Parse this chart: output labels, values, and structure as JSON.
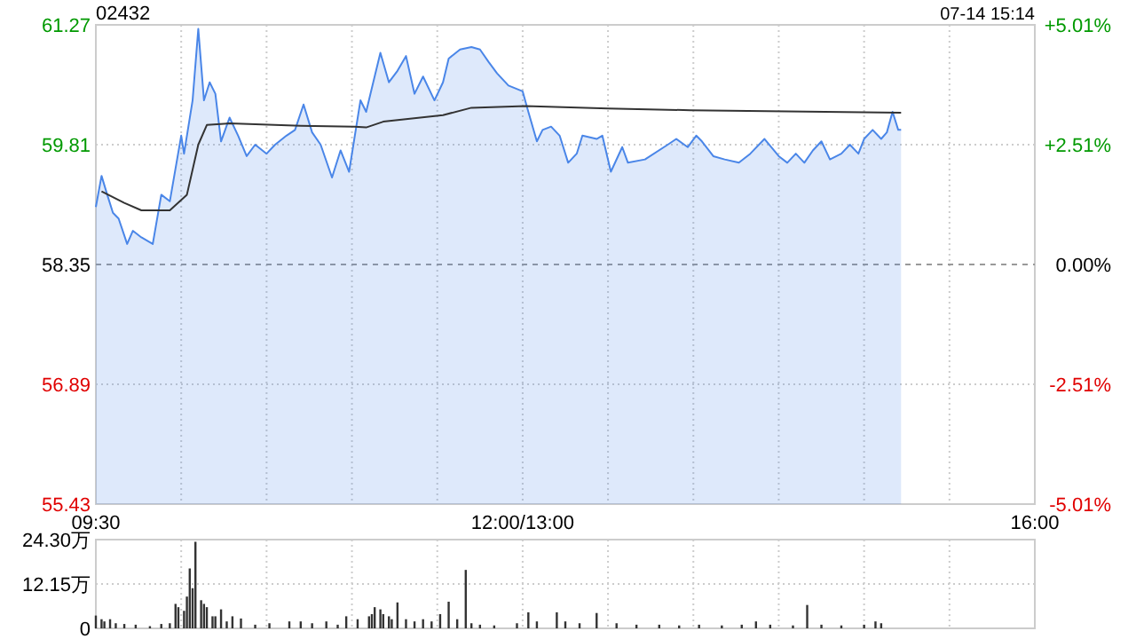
{
  "chart_data": [
    {
      "type": "area",
      "title": "02432",
      "subtitle": "07-14 15:14",
      "categories": [
        "09:30",
        null,
        null,
        null,
        null,
        null,
        null,
        null,
        null,
        null,
        null,
        null,
        null,
        null,
        null,
        null,
        null,
        null,
        null,
        null,
        null,
        null,
        null,
        null,
        null,
        null,
        null,
        null,
        null,
        null,
        null,
        null,
        null,
        null,
        null,
        null,
        null,
        null,
        null,
        null,
        null,
        null,
        null,
        null,
        null,
        null,
        null,
        null,
        null,
        null,
        null,
        null,
        null,
        null,
        null,
        null,
        null,
        null,
        null,
        null,
        null,
        null,
        null,
        null,
        null,
        null,
        null,
        null,
        null,
        null,
        null,
        null,
        null,
        null,
        null,
        null,
        null,
        null,
        null,
        null,
        null,
        null,
        null,
        null,
        null,
        null,
        null,
        null,
        null,
        null,
        null,
        null,
        null,
        null,
        null,
        null,
        null,
        null,
        null,
        null,
        null,
        null,
        null,
        null,
        null,
        null,
        null,
        null,
        null,
        null,
        null,
        null,
        null,
        null,
        null,
        null,
        null,
        null,
        null,
        null,
        null,
        null,
        null,
        null,
        null,
        null,
        null,
        null,
        null,
        null,
        null,
        null,
        null,
        null,
        null,
        null,
        null,
        null,
        null,
        null,
        null,
        null,
        null,
        null,
        null,
        null,
        null,
        null,
        null,
        null,
        "12:00/13:00",
        null,
        null,
        null,
        null,
        null,
        null,
        null,
        null,
        null,
        null,
        null,
        null,
        null,
        null,
        null,
        null,
        null,
        null,
        null,
        null,
        null,
        null,
        null,
        null,
        null,
        null,
        null,
        null,
        null,
        null,
        null,
        null,
        null,
        null,
        null,
        null,
        null,
        null,
        null,
        null,
        null,
        null,
        null,
        null,
        null,
        null,
        null,
        null,
        null,
        null,
        null,
        null,
        null,
        null,
        null,
        null,
        null,
        null,
        null,
        null,
        null,
        null,
        null,
        null,
        null,
        null,
        null,
        null,
        null,
        null,
        null,
        null,
        null,
        null,
        null,
        null,
        null,
        null,
        null,
        null,
        null,
        null,
        null,
        null,
        null,
        null,
        null,
        null,
        null,
        null,
        null,
        null,
        null,
        null,
        null,
        null,
        null,
        null,
        null,
        null,
        null,
        null,
        null,
        null,
        null,
        null,
        null,
        null,
        null,
        null,
        null,
        null,
        null,
        null,
        null,
        null,
        null,
        null,
        null,
        null,
        null,
        null,
        null,
        null,
        null,
        null,
        null,
        null,
        null,
        null,
        null,
        null,
        null,
        null,
        null,
        null,
        null,
        null,
        null,
        null,
        null,
        null,
        null,
        null,
        null,
        null,
        null,
        null,
        null,
        null,
        null,
        null,
        null,
        null,
        null,
        null,
        null,
        null,
        null,
        null,
        null,
        null,
        null,
        null,
        null,
        null,
        null,
        null,
        null,
        null,
        null,
        null,
        null,
        null,
        null,
        null,
        null,
        null,
        null,
        "16:00"
      ],
      "ylim": [
        55.43,
        61.27
      ],
      "yticks": [
        55.43,
        56.89,
        58.35,
        59.81,
        61.27
      ],
      "y2lim": [
        -5.01,
        5.01
      ],
      "y2ticks": [
        {
          "value": -5.01,
          "label": "-5.01%"
        },
        {
          "value": -2.51,
          "label": "-2.51%"
        },
        {
          "value": 0,
          "label": "0.00%"
        },
        {
          "value": 2.51,
          "label": "+2.51%"
        },
        {
          "value": 5.01,
          "label": "+5.01%"
        }
      ],
      "grid": true,
      "ref_lines": [
        {
          "axis": "y",
          "value": 58.35,
          "color": "#999999",
          "line_style": "dashed"
        }
      ],
      "series": [
        {
          "type": "area",
          "color": "#4a86e8",
          "values": [
            59.05,
            null,
            59.43,
            null,
            59.2,
            null,
            58.98,
            null,
            58.91,
            null,
            null,
            58.6,
            null,
            58.76,
            null,
            null,
            58.68,
            null,
            null,
            null,
            58.6,
            null,
            null,
            59.2,
            null,
            null,
            59.12,
            null,
            null,
            null,
            59.92,
            59.7,
            null,
            null,
            60.35,
            null,
            61.22,
            null,
            60.35,
            null,
            60.57,
            null,
            60.43,
            null,
            59.85,
            null,
            null,
            60.14,
            null,
            null,
            59.92,
            null,
            null,
            59.67,
            null,
            null,
            59.81,
            null,
            null,
            null,
            59.7,
            null,
            null,
            59.81,
            null,
            null,
            null,
            59.92,
            null,
            null,
            59.99,
            null,
            null,
            60.3,
            null,
            null,
            59.96,
            null,
            null,
            59.81,
            null,
            null,
            null,
            59.41,
            null,
            null,
            59.74,
            null,
            null,
            59.48,
            null,
            null,
            null,
            60.35,
            null,
            60.21,
            null,
            60.5,
            null,
            null,
            60.93,
            null,
            null,
            60.57,
            null,
            null,
            60.71,
            null,
            null,
            60.89,
            null,
            null,
            60.43,
            null,
            null,
            60.64,
            null,
            null,
            null,
            60.35,
            null,
            null,
            60.57,
            null,
            60.86,
            null,
            null,
            null,
            60.97,
            null,
            null,
            null,
            61.0,
            null,
            null,
            60.97,
            null,
            null,
            60.82,
            null,
            null,
            60.68,
            null,
            null,
            null,
            60.53,
            null,
            null,
            null,
            null,
            60.46,
            null,
            60.21,
            null,
            null,
            59.85,
            null,
            59.99,
            null,
            null,
            60.03,
            null,
            null,
            59.92,
            null,
            null,
            59.59,
            null,
            null,
            59.7,
            null,
            59.92,
            null,
            null,
            null,
            null,
            59.88,
            null,
            59.92,
            null,
            null,
            59.48,
            null,
            null,
            null,
            59.78,
            null,
            59.59,
            null,
            null,
            null,
            null,
            null,
            59.63,
            null,
            null,
            null,
            null,
            null,
            null,
            null,
            59.81,
            null,
            null,
            59.88,
            null,
            null,
            null,
            59.78,
            null,
            null,
            59.92,
            null,
            59.85,
            null,
            null,
            null,
            59.67,
            null,
            null,
            null,
            59.63,
            null,
            null,
            null,
            null,
            59.59,
            null,
            null,
            null,
            59.7,
            null,
            null,
            null,
            null,
            59.88,
            null,
            null,
            null,
            null,
            59.67,
            null,
            null,
            59.59,
            null,
            null,
            59.7,
            null,
            null,
            59.59,
            null,
            null,
            59.74,
            null,
            null,
            59.85,
            null,
            null,
            59.63,
            null,
            null,
            null,
            59.7,
            null,
            null,
            59.81,
            null,
            null,
            59.7,
            null,
            59.88,
            null,
            null,
            59.99,
            null,
            null,
            59.88,
            null,
            59.96,
            null,
            60.21,
            null,
            59.99,
            59.99,
            null,
            null,
            null,
            null,
            null,
            null,
            null,
            null,
            null,
            null,
            null,
            null,
            null,
            null,
            null,
            null,
            null,
            null,
            null,
            null,
            null,
            null,
            null,
            null,
            null,
            null,
            null,
            null,
            null,
            null,
            null,
            null,
            null,
            null,
            null,
            null,
            null,
            null,
            null,
            null,
            null,
            null,
            null,
            null,
            null,
            null,
            null
          ]
        },
        {
          "type": "line",
          "color": "#333333",
          "values": [
            null,
            null,
            59.24,
            null,
            null,
            null,
            null,
            null,
            null,
            null,
            59.1,
            null,
            null,
            null,
            null,
            null,
            59.01,
            null,
            null,
            null,
            null,
            null,
            null,
            null,
            null,
            null,
            59.01,
            null,
            null,
            null,
            null,
            null,
            59.2,
            null,
            null,
            null,
            59.81,
            null,
            null,
            60.05,
            null,
            null,
            null,
            null,
            null,
            null,
            null,
            60.07,
            null,
            null,
            null,
            null,
            null,
            null,
            null,
            null,
            null,
            null,
            null,
            null,
            null,
            null,
            null,
            null,
            null,
            null,
            null,
            null,
            null,
            null,
            null,
            null,
            60.04,
            null,
            null,
            null,
            null,
            null,
            null,
            null,
            null,
            null,
            null,
            null,
            null,
            null,
            null,
            null,
            null,
            null,
            null,
            60.03,
            null,
            null,
            null,
            60.02,
            null,
            null,
            null,
            null,
            null,
            60.09,
            null,
            null,
            null,
            null,
            null,
            null,
            null,
            null,
            null,
            null,
            null,
            null,
            null,
            null,
            null,
            null,
            null,
            null,
            null,
            null,
            60.17,
            null,
            null,
            null,
            null,
            null,
            null,
            null,
            null,
            null,
            60.26,
            null,
            null,
            null,
            null,
            null,
            null,
            null,
            null,
            null,
            null,
            null,
            null,
            null,
            null,
            null,
            null,
            null,
            null,
            60.28,
            null,
            null,
            null,
            null,
            null,
            null,
            null,
            null,
            null,
            null,
            null,
            null,
            null,
            null,
            null,
            null,
            null,
            null,
            null,
            null,
            null,
            null,
            null,
            null,
            null,
            null,
            null,
            null,
            60.25,
            null,
            null,
            null,
            null,
            null,
            null,
            null,
            null,
            null,
            null,
            null,
            null,
            null,
            null,
            null,
            null,
            null,
            null,
            null,
            null,
            null,
            null,
            null,
            null,
            null,
            null,
            null,
            null,
            60.23,
            null,
            null,
            null,
            null,
            null,
            null,
            null,
            null,
            null,
            null,
            null,
            null,
            null,
            null,
            null,
            null,
            null,
            null,
            null,
            null,
            null,
            null,
            null,
            null,
            null,
            null,
            null,
            null,
            null,
            null,
            null,
            null,
            null,
            null,
            null,
            null,
            null,
            null,
            null,
            null,
            null,
            null,
            null,
            null,
            null,
            null,
            null,
            null,
            null,
            null,
            null,
            null,
            null,
            null,
            null,
            null,
            null,
            null,
            null,
            null,
            null,
            null,
            null,
            null,
            null,
            null,
            null,
            null,
            null,
            null,
            null,
            null,
            null,
            60.2,
            null,
            null,
            null,
            null,
            null,
            null,
            null,
            null,
            null,
            null,
            null,
            null,
            null,
            null,
            null,
            null,
            null,
            null,
            null,
            null,
            null,
            null,
            null,
            null,
            null,
            null,
            null,
            null,
            null,
            null,
            null,
            null,
            null,
            null,
            null,
            null,
            null,
            null,
            null,
            null,
            null,
            null,
            null,
            null,
            null,
            null,
            null
          ]
        }
      ]
    },
    {
      "type": "bar",
      "grid": true,
      "categories": [
        null,
        null,
        null,
        null,
        null,
        null,
        null,
        null,
        null,
        null,
        null,
        null,
        null,
        null,
        null,
        null,
        null,
        null,
        null,
        null,
        null,
        null,
        null,
        null,
        null,
        null,
        null,
        null,
        null,
        null,
        null,
        null,
        null,
        null,
        null,
        null,
        null,
        null,
        null,
        null,
        null,
        null,
        null,
        null,
        null,
        null,
        null,
        null,
        null,
        null,
        null,
        null,
        null,
        null,
        null,
        null,
        null,
        null,
        null,
        null,
        null,
        null,
        null,
        null,
        null,
        null,
        null,
        null,
        null,
        null,
        null,
        null,
        null,
        null,
        null,
        null,
        null,
        null,
        null,
        null,
        null,
        null,
        null,
        null,
        null,
        null,
        null,
        null,
        null,
        null,
        null,
        null,
        null,
        null,
        null,
        null,
        null,
        null,
        null,
        null,
        null,
        null,
        null,
        null,
        null,
        null,
        null,
        null,
        null,
        null,
        null,
        null,
        null,
        null,
        null,
        null,
        null,
        null,
        null,
        null,
        null,
        null,
        null,
        null,
        null,
        null,
        null,
        null,
        null,
        null,
        null,
        null,
        null,
        null,
        null,
        null,
        null,
        null,
        null,
        null,
        null,
        null,
        null,
        null,
        null,
        null,
        null,
        null,
        null,
        null,
        null,
        null,
        null,
        null,
        null,
        null,
        null,
        null,
        null,
        null,
        null,
        null,
        null,
        null,
        null,
        null,
        null,
        null,
        null,
        null,
        null,
        null,
        null,
        null,
        null,
        null,
        null,
        null,
        null,
        null,
        null,
        null,
        null,
        null,
        null,
        null,
        null,
        null,
        null,
        null,
        null,
        null,
        null,
        null,
        null,
        null,
        null,
        null,
        null,
        null,
        null,
        null,
        null,
        null,
        null,
        null,
        null,
        null,
        null,
        null,
        null,
        null,
        null,
        null,
        null,
        null,
        null,
        null,
        null,
        null,
        null,
        null,
        null,
        null,
        null,
        null,
        null,
        null,
        null,
        null,
        null,
        null,
        null,
        null,
        null,
        null,
        null,
        null,
        null,
        null,
        null,
        null,
        null,
        null,
        null,
        null,
        null,
        null,
        null,
        null,
        null,
        null,
        null,
        null,
        null,
        null,
        null,
        null,
        null,
        null,
        null,
        null,
        null,
        null,
        null,
        null,
        null,
        null,
        null,
        null,
        null,
        null,
        null,
        null,
        null,
        null,
        null,
        null,
        null,
        null,
        null,
        null,
        null,
        null,
        null,
        null,
        null,
        null,
        null,
        null,
        null,
        null,
        null,
        null,
        null,
        null,
        null,
        null,
        null,
        null,
        null,
        null,
        null,
        null,
        null,
        null,
        null,
        null,
        null,
        null,
        null,
        null,
        null,
        null,
        null,
        null,
        null,
        null,
        null,
        null,
        null,
        null,
        null,
        null,
        null,
        null,
        null,
        null,
        null,
        null,
        null
      ],
      "ylim": [
        0,
        24.3
      ],
      "yticks": [
        0,
        {
          "value": 12.15,
          "label": "12.15万"
        },
        {
          "value": 24.3,
          "label": "24.30万"
        }
      ],
      "series": [
        {
          "color": "#333333",
          "values": [
            3.5,
            null,
            2.5,
            1.9,
            null,
            2.5,
            null,
            1.4,
            null,
            null,
            1.2,
            null,
            null,
            null,
            1.0,
            null,
            null,
            null,
            null,
            0.6,
            null,
            null,
            null,
            1.2,
            null,
            null,
            1.4,
            null,
            6.7,
            5.8,
            null,
            4.8,
            8.7,
            16.4,
            11.0,
            23.7,
            null,
            7.7,
            6.7,
            5.8,
            null,
            3.3,
            3.3,
            null,
            5.2,
            null,
            1.9,
            null,
            3.3,
            null,
            null,
            2.7,
            null,
            null,
            null,
            null,
            1.0,
            null,
            null,
            null,
            null,
            1.4,
            null,
            null,
            null,
            null,
            null,
            null,
            1.9,
            null,
            null,
            null,
            1.9,
            null,
            null,
            null,
            1.4,
            null,
            null,
            null,
            null,
            1.9,
            null,
            null,
            null,
            1.0,
            null,
            null,
            3.3,
            null,
            null,
            null,
            2.5,
            null,
            null,
            null,
            3.3,
            3.9,
            5.8,
            null,
            5.2,
            3.9,
            null,
            3.3,
            2.5,
            null,
            7.1,
            null,
            null,
            2.5,
            null,
            null,
            1.9,
            null,
            null,
            2.5,
            null,
            null,
            1.9,
            null,
            null,
            3.9,
            null,
            null,
            7.3,
            null,
            null,
            2.5,
            null,
            null,
            16.0,
            null,
            1.4,
            null,
            null,
            1.0,
            null,
            null,
            null,
            null,
            0.8,
            null,
            null,
            null,
            null,
            null,
            null,
            null,
            1.4,
            null,
            null,
            null,
            4.4,
            null,
            null,
            1.9,
            null,
            null,
            null,
            null,
            null,
            null,
            4.4,
            null,
            null,
            1.9,
            null,
            null,
            null,
            null,
            1.4,
            null,
            null,
            null,
            null,
            null,
            4.2,
            null,
            null,
            null,
            null,
            null,
            null,
            1.4,
            null,
            null,
            null,
            null,
            null,
            null,
            1.0,
            null,
            null,
            null,
            null,
            null,
            null,
            null,
            1.0,
            null,
            null,
            null,
            null,
            null,
            null,
            0.8,
            null,
            null,
            null,
            null,
            null,
            null,
            1.0,
            null,
            null,
            null,
            null,
            null,
            null,
            null,
            0.8,
            null,
            null,
            null,
            null,
            null,
            null,
            1.0,
            null,
            null,
            null,
            null,
            1.9,
            null,
            null,
            null,
            null,
            1.0,
            null,
            null,
            null,
            null,
            null,
            null,
            null,
            0.8,
            null,
            null,
            null,
            null,
            6.4,
            null,
            null,
            null,
            null,
            1.0,
            null,
            null,
            null,
            null,
            null,
            null,
            0.8,
            null,
            null,
            null,
            null,
            null,
            null,
            null,
            1.0,
            null,
            null,
            null,
            1.9,
            null,
            1.4,
            null,
            null,
            null,
            null,
            null,
            null,
            null,
            null,
            null,
            null,
            null,
            null,
            null,
            null,
            null,
            null,
            null,
            null,
            null,
            null,
            null,
            null,
            null,
            null,
            null,
            null,
            null,
            null,
            null,
            null,
            null,
            null,
            null,
            null,
            null,
            null,
            null,
            null,
            null,
            null,
            null,
            null,
            null,
            null,
            null,
            null,
            null,
            null,
            null,
            null,
            null,
            null,
            null,
            null
          ]
        }
      ]
    }
  ]
}
